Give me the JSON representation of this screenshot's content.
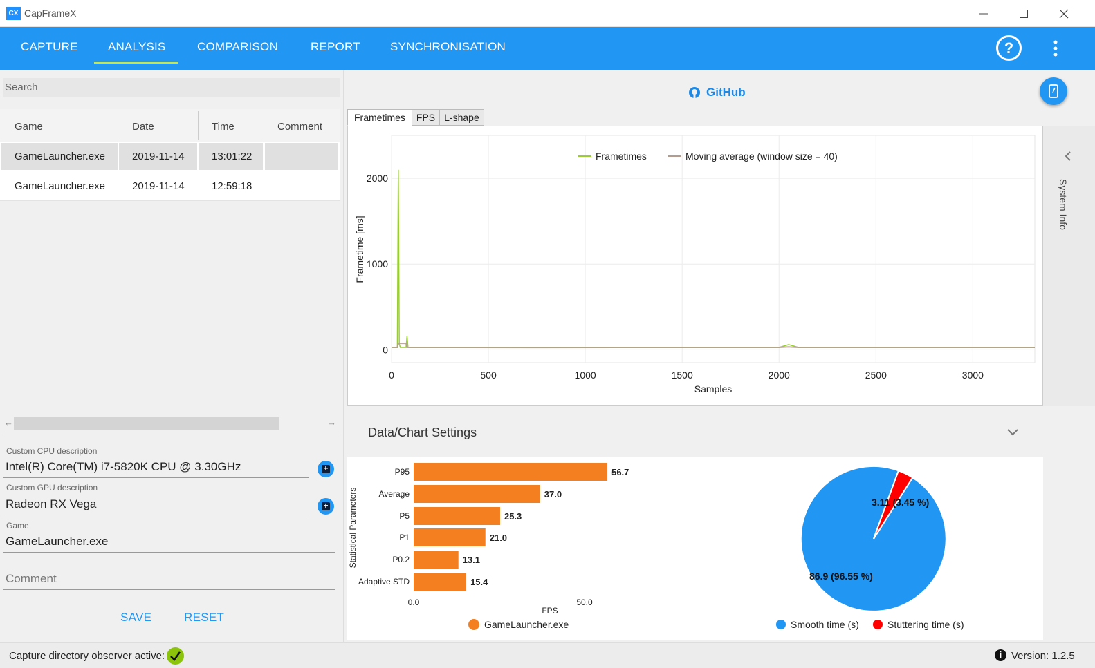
{
  "app": {
    "title": "CapFrameX",
    "logo_text": "CX"
  },
  "nav": {
    "tabs": [
      "CAPTURE",
      "ANALYSIS",
      "COMPARISON",
      "REPORT",
      "SYNCHRONISATION"
    ],
    "active": "ANALYSIS"
  },
  "search": {
    "placeholder": "Search"
  },
  "table": {
    "headers": [
      "Game",
      "Date",
      "Time",
      "Comment"
    ],
    "rows": [
      {
        "game": "GameLauncher.exe",
        "date": "2019-11-14",
        "time": "13:01:22",
        "comment": ""
      },
      {
        "game": "GameLauncher.exe",
        "date": "2019-11-14",
        "time": "12:59:18",
        "comment": ""
      }
    ]
  },
  "fields": {
    "cpu_label": "Custom CPU description",
    "cpu_value": "Intel(R) Core(TM) i7-5820K CPU @ 3.30GHz",
    "gpu_label": "Custom GPU description",
    "gpu_value": "Radeon RX Vega",
    "game_label": "Game",
    "game_value": "GameLauncher.exe",
    "comment_placeholder": "Comment"
  },
  "actions": {
    "save": "SAVE",
    "reset": "RESET"
  },
  "github": {
    "label": "GitHub"
  },
  "chart_tabs": [
    "Frametimes",
    "FPS",
    "L-shape"
  ],
  "side": {
    "system_info": "System Info"
  },
  "settings": {
    "label": "Data/Chart Settings"
  },
  "status": {
    "message": "Capture directory observer active:",
    "version": "Version:  1.2.5"
  },
  "colors": {
    "accent": "#2196f3",
    "frametime_line": "#9acd32",
    "moving_avg": "#b39b8e",
    "bar": "#f47f20",
    "smooth": "#2196f3",
    "stutter": "#ff0000"
  },
  "chart_data": [
    {
      "type": "line",
      "xlabel": "Samples",
      "ylabel": "Frametime [ms]",
      "xlim": [
        0,
        3320
      ],
      "ylim": [
        -150,
        2500
      ],
      "xticks": [
        0,
        500,
        1000,
        1500,
        2000,
        2500,
        3000
      ],
      "yticks": [
        0,
        1000,
        2000
      ],
      "grid": true,
      "legend_position": "top-center",
      "series": [
        {
          "name": "Frametimes",
          "x": [
            0,
            30,
            35,
            40,
            45,
            75,
            80,
            85,
            90,
            300,
            800,
            1500,
            2000,
            2050,
            2100,
            2500,
            3000,
            3320
          ],
          "y": [
            27,
            27,
            2100,
            70,
            27,
            27,
            160,
            27,
            27,
            27,
            26,
            27,
            27,
            60,
            27,
            27,
            27,
            27
          ]
        },
        {
          "name": "Moving average (window size = 40)",
          "x": [
            0,
            30,
            35,
            75,
            80,
            100,
            300,
            800,
            1500,
            2000,
            2050,
            2100,
            2500,
            3000,
            3320
          ],
          "y": [
            27,
            27,
            75,
            75,
            28,
            27,
            27,
            26,
            27,
            27,
            33,
            27,
            27,
            27,
            27
          ]
        }
      ]
    },
    {
      "type": "bar",
      "orientation": "horizontal",
      "ylabel": "Statistical Parameters",
      "xlabel": "FPS",
      "xticks": [
        0.0,
        50.0
      ],
      "xtick_labels": [
        "0.0",
        "50.0"
      ],
      "categories": [
        "P95",
        "Average",
        "P5",
        "P1",
        "P0.2",
        "Adaptive STD"
      ],
      "values": [
        56.7,
        37.0,
        25.3,
        21.0,
        13.1,
        15.4
      ],
      "value_labels": [
        "56.7",
        "37.0",
        "25.3",
        "21.0",
        "13.1",
        "15.4"
      ],
      "series_name": "GameLauncher.exe"
    },
    {
      "type": "pie",
      "slices": [
        {
          "name": "Smooth time (s)",
          "value": 86.9,
          "label": "86.9 (96.55 %)"
        },
        {
          "name": "Stuttering time (s)",
          "value": 3.11,
          "label": "3.11 (3.45 %)"
        }
      ]
    }
  ]
}
